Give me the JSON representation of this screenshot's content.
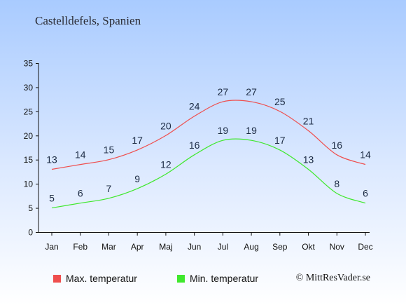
{
  "header": {
    "title": "Castelldefels, Spanien"
  },
  "legend": {
    "max_label": "Max. temperatur",
    "min_label": "Min. temperatur"
  },
  "credit": "© MittResVader.se",
  "colors": {
    "max": "#ef4e4e",
    "min": "#3fe82d",
    "axis": "#111111"
  },
  "chart_data": {
    "type": "line",
    "title": "Castelldefels, Spanien",
    "categories": [
      "Jan",
      "Feb",
      "Mar",
      "Apr",
      "Maj",
      "Jun",
      "Jul",
      "Aug",
      "Sep",
      "Okt",
      "Nov",
      "Dec"
    ],
    "series": [
      {
        "name": "Max. temperatur",
        "values": [
          13,
          14,
          15,
          17,
          20,
          24,
          27,
          27,
          25,
          21,
          16,
          14
        ]
      },
      {
        "name": "Min. temperatur",
        "values": [
          5,
          6,
          7,
          9,
          12,
          16,
          19,
          19,
          17,
          13,
          8,
          6
        ]
      }
    ],
    "y_ticks": [
      0,
      5,
      10,
      15,
      20,
      25,
      30,
      35
    ],
    "ylim": [
      0,
      35
    ],
    "grid": false,
    "legend_position": "bottom-left"
  }
}
